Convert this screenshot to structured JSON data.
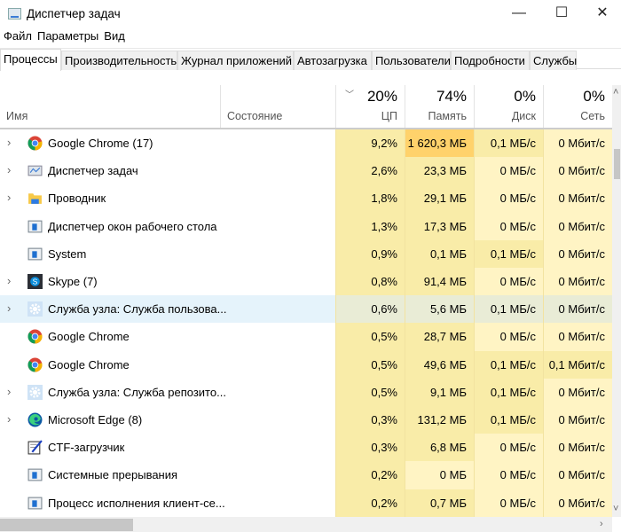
{
  "window": {
    "title": "Диспетчер задач",
    "minimize": "—",
    "maximize": "☐",
    "close": "✕"
  },
  "menu": [
    "Файл",
    "Параметры",
    "Вид"
  ],
  "tabs": [
    "Процессы",
    "Производительность",
    "Журнал приложений",
    "Автозагрузка",
    "Пользователи",
    "Подробности",
    "Службы"
  ],
  "active_tab": 0,
  "columns": {
    "name": "Имя",
    "state": "Состояние",
    "cpu": {
      "pct": "20%",
      "label": "ЦП",
      "sorted": "descending"
    },
    "memory": {
      "pct": "74%",
      "label": "Память"
    },
    "disk": {
      "pct": "0%",
      "label": "Диск"
    },
    "network": {
      "pct": "0%",
      "label": "Сеть"
    }
  },
  "colors": {
    "heat_light": "#fff4c4",
    "heat_mid": "#f9eca8",
    "heat_high": "#ffd26b",
    "hover_row": "#e5f3fb"
  },
  "processes": [
    {
      "name": "Google Chrome (17)",
      "icon": "chrome-icon",
      "expandable": true,
      "cpu": "9,2%",
      "memory": "1 620,3 МБ",
      "disk": "0,1 МБ/с",
      "network": "0 Мбит/с"
    },
    {
      "name": "Диспетчер задач",
      "icon": "task-manager-icon",
      "expandable": true,
      "cpu": "2,6%",
      "memory": "23,3 МБ",
      "disk": "0 МБ/с",
      "network": "0 Мбит/с"
    },
    {
      "name": "Проводник",
      "icon": "folder-icon",
      "expandable": true,
      "cpu": "1,8%",
      "memory": "29,1 МБ",
      "disk": "0 МБ/с",
      "network": "0 Мбит/с"
    },
    {
      "name": "Диспетчер окон рабочего стола",
      "icon": "system-window-icon",
      "expandable": false,
      "cpu": "1,3%",
      "memory": "17,3 МБ",
      "disk": "0 МБ/с",
      "network": "0 Мбит/с"
    },
    {
      "name": "System",
      "icon": "system-window-icon",
      "expandable": false,
      "cpu": "0,9%",
      "memory": "0,1 МБ",
      "disk": "0,1 МБ/с",
      "network": "0 Мбит/с"
    },
    {
      "name": "Skype (7)",
      "icon": "skype-icon",
      "expandable": true,
      "cpu": "0,8%",
      "memory": "91,4 МБ",
      "disk": "0 МБ/с",
      "network": "0 Мбит/с"
    },
    {
      "name": "Служба узла: Служба пользова...",
      "icon": "gear-icon",
      "expandable": true,
      "highlighted": true,
      "cpu": "0,6%",
      "memory": "5,6 МБ",
      "disk": "0,1 МБ/с",
      "network": "0 Мбит/с"
    },
    {
      "name": "Google Chrome",
      "icon": "chrome-icon",
      "expandable": false,
      "cpu": "0,5%",
      "memory": "28,7 МБ",
      "disk": "0 МБ/с",
      "network": "0 Мбит/с"
    },
    {
      "name": "Google Chrome",
      "icon": "chrome-icon",
      "expandable": false,
      "cpu": "0,5%",
      "memory": "49,6 МБ",
      "disk": "0,1 МБ/с",
      "network": "0,1 Мбит/с"
    },
    {
      "name": "Служба узла: Служба репозито...",
      "icon": "gear-icon",
      "expandable": true,
      "cpu": "0,5%",
      "memory": "9,1 МБ",
      "disk": "0,1 МБ/с",
      "network": "0 Мбит/с"
    },
    {
      "name": "Microsoft Edge (8)",
      "icon": "edge-icon",
      "expandable": true,
      "cpu": "0,3%",
      "memory": "131,2 МБ",
      "disk": "0,1 МБ/с",
      "network": "0 Мбит/с"
    },
    {
      "name": "CTF-загрузчик",
      "icon": "ctf-pen-icon",
      "expandable": false,
      "cpu": "0,3%",
      "memory": "6,8 МБ",
      "disk": "0 МБ/с",
      "network": "0 Мбит/с"
    },
    {
      "name": "Системные прерывания",
      "icon": "system-window-icon",
      "expandable": false,
      "cpu": "0,2%",
      "memory": "0 МБ",
      "disk": "0 МБ/с",
      "network": "0 Мбит/с"
    },
    {
      "name": "Процесс исполнения клиент-се...",
      "icon": "system-window-icon",
      "expandable": false,
      "cpu": "0,2%",
      "memory": "0,7 МБ",
      "disk": "0 МБ/с",
      "network": "0 Мбит/с"
    }
  ]
}
